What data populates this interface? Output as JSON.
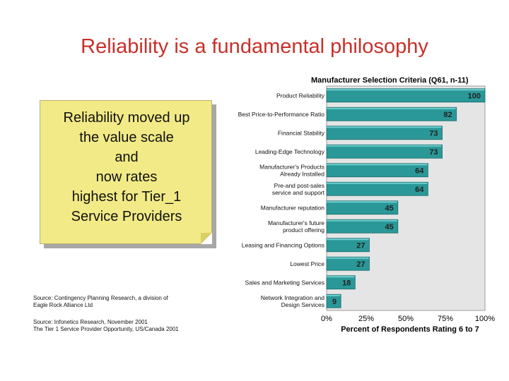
{
  "slide": {
    "title": "Reliability is a fundamental philosophy"
  },
  "note": {
    "text": "Reliability moved up\nthe value scale\nand\nnow rates\nhighest for Tier_1\nService Providers"
  },
  "sources": {
    "first": "Source: Contingency Planning Research, a division of\nEagle Rock Alliance Ltd",
    "second": "Source: Infonetics Research, November 2001\nThe Tier 1 Service Provider Opportunity, US/Canada 2001"
  },
  "chart_data": {
    "type": "bar",
    "orientation": "horizontal",
    "title": "Manufacturer Selection Criteria (Q61, n-11)",
    "xlabel": "Percent of Respondents Rating 6 to 7",
    "ylabel": "",
    "xlim": [
      0,
      100
    ],
    "x_ticks": [
      "0%",
      "25%",
      "50%",
      "75%",
      "100%"
    ],
    "grid": false,
    "bar_color": "#2a9898",
    "plot_background": "#e5e5e5",
    "categories": [
      "Product Reliability",
      "Best Price-to-Performance Ratio",
      "Financial Stability",
      "Leading-Edge Technology",
      "Manufacturer's Products\nAlready Installed",
      "Pre-and post-sales\nservice and support",
      "Manufacturer reputation",
      "Manufacturer's future\nproduct offering",
      "Leasing and Financing Options",
      "Lowest Price",
      "Sales and Marketing Services",
      "Network Integration and\nDesign Services"
    ],
    "values": [
      100,
      82,
      73,
      73,
      64,
      64,
      45,
      45,
      27,
      27,
      18,
      9
    ]
  }
}
